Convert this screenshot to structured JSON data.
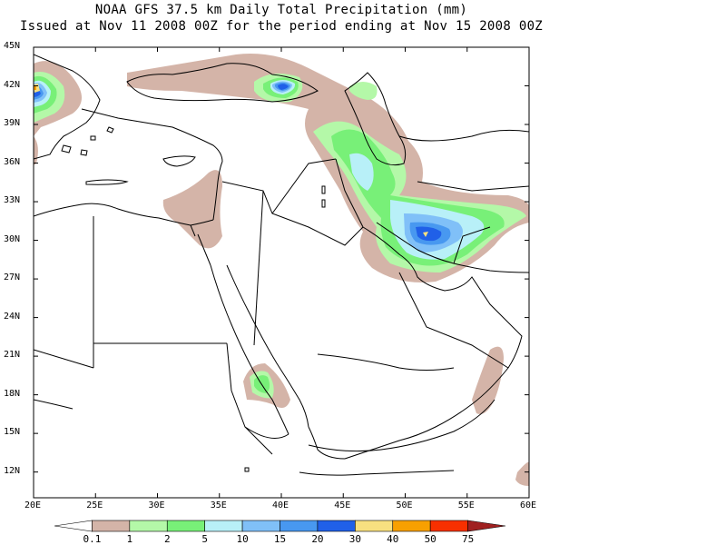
{
  "title_line1": "NOAA GFS 37.5 km Daily Total Precipitation (mm)",
  "title_line2": "Issued at Nov 11 2008 00Z for the period ending at Nov 15 2008 00Z",
  "map": {
    "lon_range": [
      20,
      60
    ],
    "lat_range": [
      10,
      45
    ],
    "lat_labels": [
      "45N",
      "42N",
      "39N",
      "36N",
      "33N",
      "30N",
      "27N",
      "24N",
      "21N",
      "18N",
      "15N",
      "12N"
    ],
    "lat_values": [
      45,
      42,
      39,
      36,
      33,
      30,
      27,
      24,
      21,
      18,
      15,
      12
    ],
    "lon_labels": [
      "20E",
      "25E",
      "30E",
      "35E",
      "40E",
      "45E",
      "50E",
      "55E",
      "60E"
    ],
    "lon_values": [
      20,
      25,
      30,
      35,
      40,
      45,
      50,
      55,
      60
    ]
  },
  "colorbar": {
    "labels": [
      "0.1",
      "1",
      "2",
      "5",
      "10",
      "15",
      "20",
      "30",
      "40",
      "50",
      "75"
    ],
    "colors": [
      "#ffffff",
      "#d4b4a8",
      "#b4f8a8",
      "#78f078",
      "#b8f0f8",
      "#80c0f8",
      "#4898f0",
      "#2060e8",
      "#f8e080",
      "#f8a000",
      "#f83000",
      "#a02020"
    ]
  },
  "precip_colors": {
    "light": "#d4b4a8",
    "green_light": "#b4f8a8",
    "green": "#78f078",
    "cyan": "#b8f0f8",
    "blue_light": "#80c0f8",
    "blue": "#4898f0",
    "blue_dark": "#2060e8",
    "yellow": "#f8e080",
    "orange": "#f8a000"
  }
}
